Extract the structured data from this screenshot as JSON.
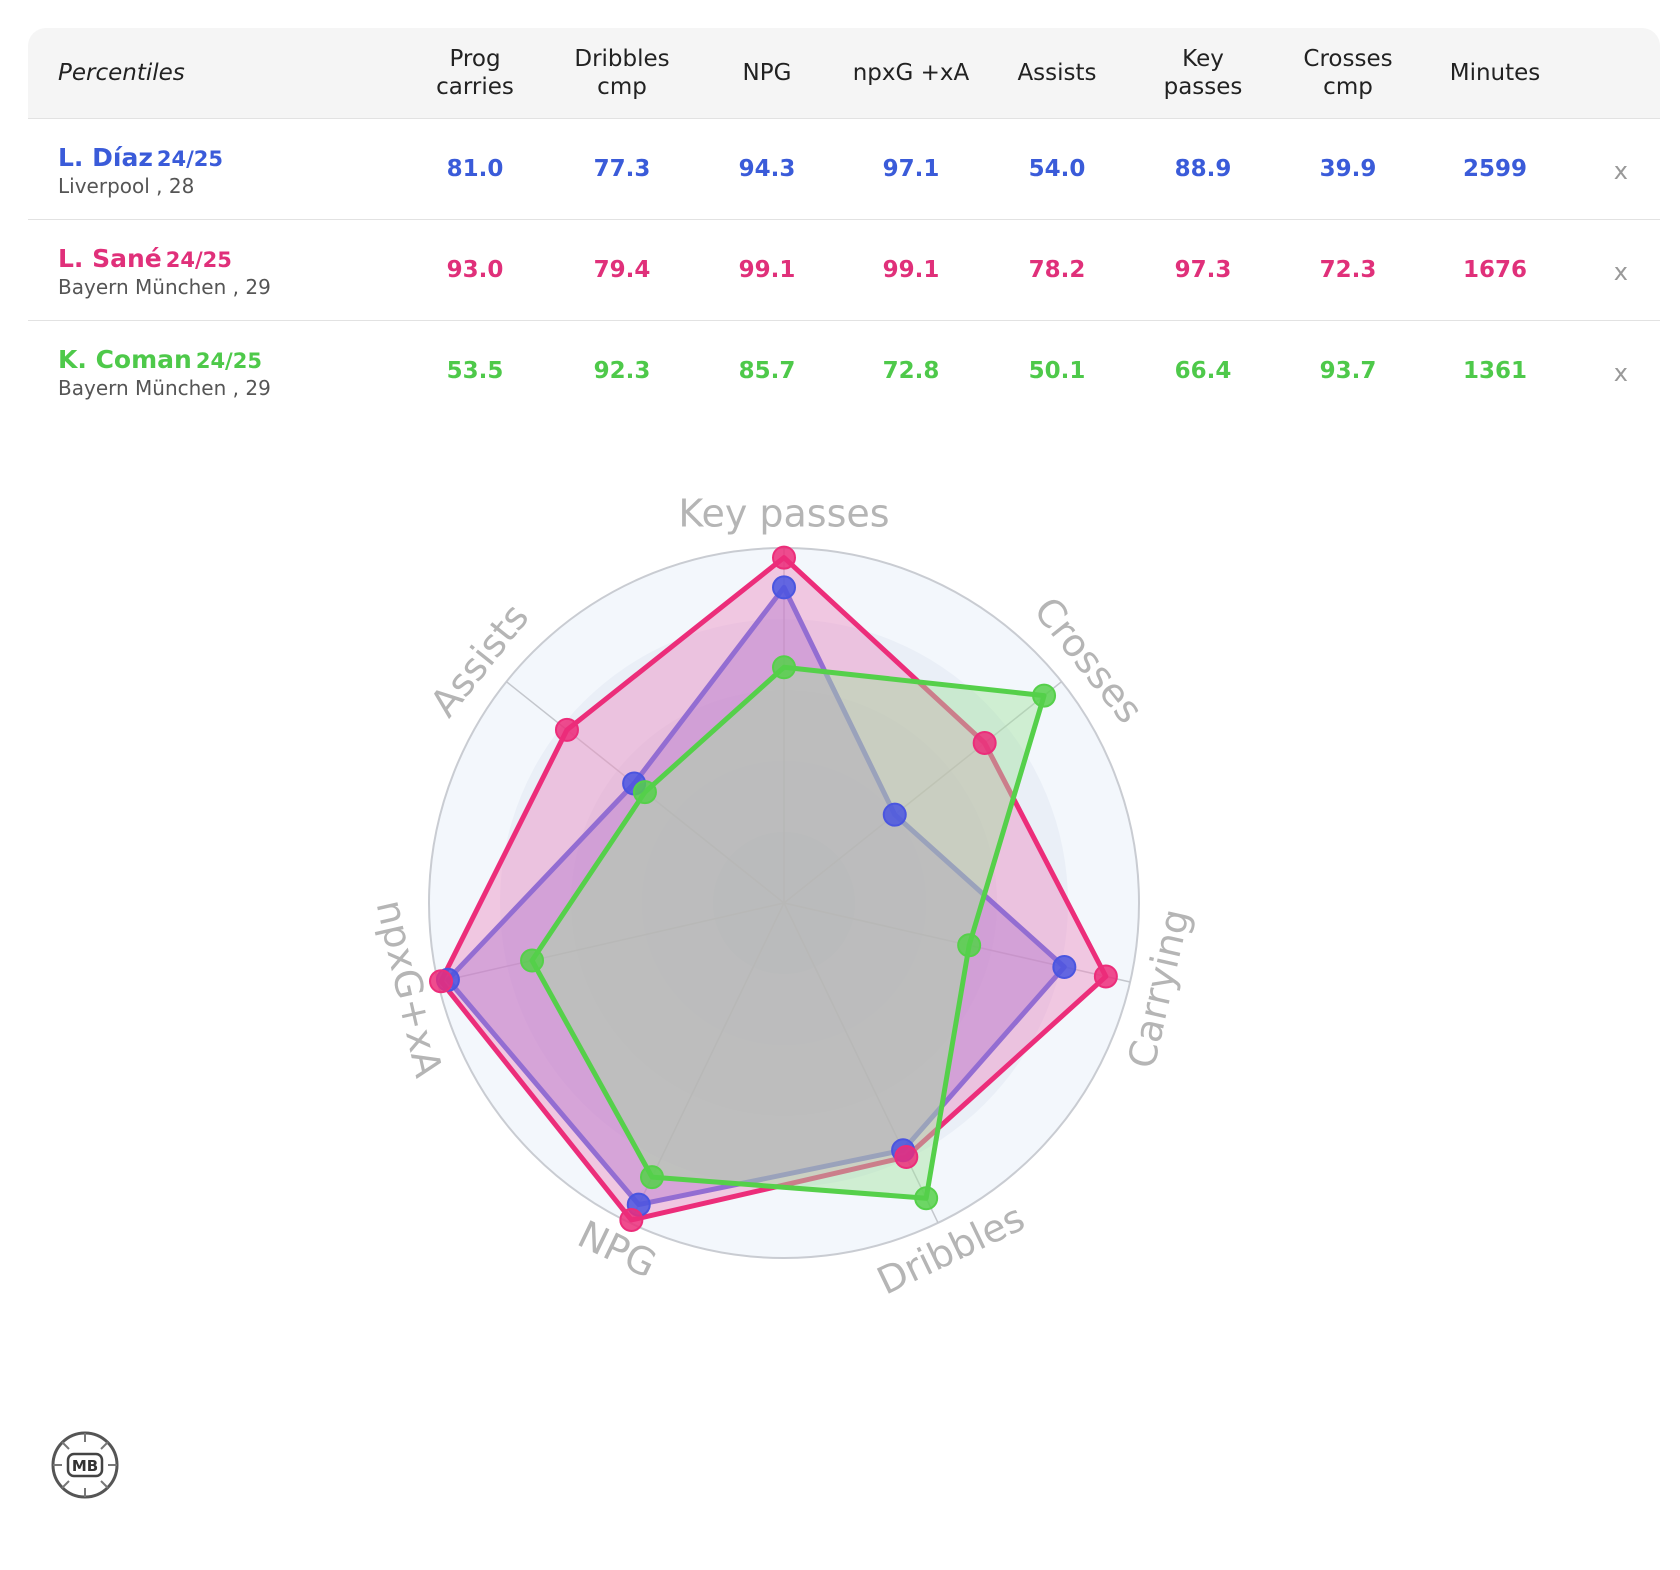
{
  "table": {
    "percentiles_label": "Percentiles",
    "headers": [
      {
        "line1": "Prog",
        "line2": "carries"
      },
      {
        "line1": "Dribbles",
        "line2": "cmp"
      },
      {
        "line1": "NPG",
        "line2": ""
      },
      {
        "line1": "npxG +xA",
        "line2": ""
      },
      {
        "line1": "Assists",
        "line2": ""
      },
      {
        "line1": "Key",
        "line2": "passes"
      },
      {
        "line1": "Crosses",
        "line2": "cmp"
      },
      {
        "line1": "Minutes",
        "line2": ""
      }
    ],
    "remove_label": "x",
    "players": [
      {
        "name": "L. Díaz",
        "season": "24/25",
        "team": "Liverpool , 28",
        "color": "#3a5bd9",
        "values": [
          "81.0",
          "77.3",
          "94.3",
          "97.1",
          "54.0",
          "88.9",
          "39.9",
          "2599"
        ]
      },
      {
        "name": "L. Sané",
        "season": "24/25",
        "team": "Bayern München , 29",
        "color": "#e0307a",
        "values": [
          "93.0",
          "79.4",
          "99.1",
          "99.1",
          "78.2",
          "97.3",
          "72.3",
          "1676"
        ]
      },
      {
        "name": "K. Coman",
        "season": "24/25",
        "team": "Bayern München , 29",
        "color": "#4ec94a",
        "values": [
          "53.5",
          "92.3",
          "85.7",
          "72.8",
          "50.1",
          "66.4",
          "93.7",
          "1361"
        ]
      }
    ]
  },
  "chart_data": {
    "type": "radar",
    "axes": [
      "Key passes",
      "Crosses",
      "Carrying",
      "Dribbles",
      "NPG",
      "npxG+xA",
      "Assists"
    ],
    "range": [
      0,
      100
    ],
    "grid": true,
    "series": [
      {
        "name": "L. Díaz",
        "color": "#4a55e0",
        "fill": "#8a6ad9",
        "values": [
          88.9,
          39.9,
          81.0,
          77.3,
          94.3,
          97.1,
          54.0
        ]
      },
      {
        "name": "L. Sané",
        "color": "#ec2d7a",
        "fill": "#ee8cc0",
        "values": [
          97.3,
          72.3,
          93.0,
          79.4,
          99.1,
          99.1,
          78.2
        ]
      },
      {
        "name": "K. Coman",
        "color": "#55d04a",
        "fill": "#a3e3a0",
        "values": [
          66.4,
          93.7,
          53.5,
          92.3,
          85.7,
          72.8,
          50.1
        ]
      }
    ]
  },
  "logo": {
    "text": "MB"
  }
}
